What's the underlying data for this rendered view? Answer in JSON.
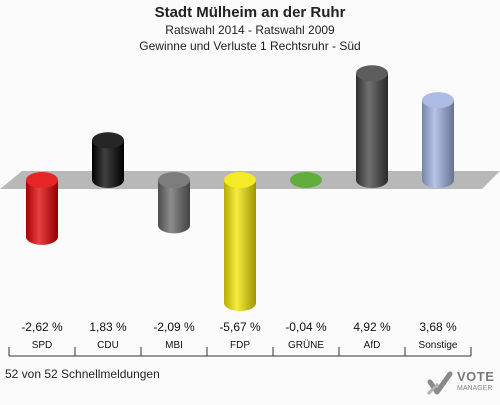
{
  "titles": {
    "line1": "Stadt Mülheim an der Ruhr",
    "line2": "Ratswahl 2014 - Ratswahl 2009",
    "line3": "Gewinne und Verluste 1 Rechtsruhr - Süd"
  },
  "footer": "52 von 52 Schnellmeldungen",
  "logo": {
    "text": "VOTE",
    "sub": "MANAGER",
    "icon": "votemanager-logo-icon"
  },
  "chart_data": {
    "type": "bar",
    "title": "Stadt Mülheim an der Ruhr",
    "subtitle": "Ratswahl 2014 - Ratswahl 2009 / Gewinne und Verluste 1 Rechtsruhr - Süd",
    "categories": [
      "SPD",
      "CDU",
      "MBI",
      "FDP",
      "GRÜNE",
      "AfD",
      "Sonstige"
    ],
    "values": [
      -2.62,
      1.83,
      -2.09,
      -5.67,
      -0.04,
      4.92,
      3.68
    ],
    "value_labels": [
      "-2,62 %",
      "1,83 %",
      "-2,09 %",
      "-5,67 %",
      "-0,04 %",
      "4,92 %",
      "3,68 %"
    ],
    "colors": [
      "#e00000",
      "#000000",
      "#666666",
      "#f2e600",
      "#5aaa32",
      "#404040",
      "#9fb0e0"
    ],
    "ylim": [
      -5.67,
      4.92
    ],
    "grid": false,
    "legend": "none"
  }
}
